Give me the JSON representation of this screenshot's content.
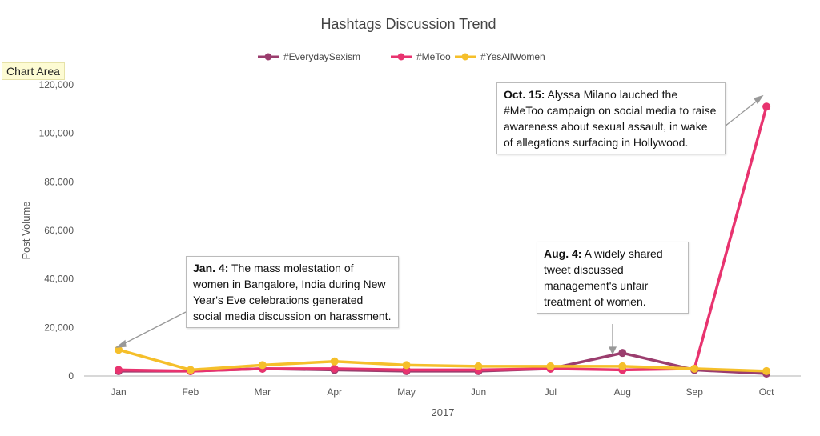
{
  "tooltip": "Chart Area",
  "chart_data": {
    "type": "line",
    "title": "Hashtags Discussion Trend",
    "xlabel": "2017",
    "ylabel": "Post Volume",
    "ylim": [
      0,
      120000
    ],
    "yticks": [
      0,
      20000,
      40000,
      60000,
      80000,
      100000,
      120000
    ],
    "ytick_labels": [
      "0",
      "20,000",
      "40,000",
      "60,000",
      "80,000",
      "100,000",
      "120,000"
    ],
    "categories": [
      "Jan",
      "Feb",
      "Mar",
      "Apr",
      "May",
      "Jun",
      "Jul",
      "Aug",
      "Sep",
      "Oct"
    ],
    "legend_position": "top",
    "series": [
      {
        "name": "#EverydaySexism",
        "color": "#9b3d6e",
        "values": [
          2000,
          2000,
          3000,
          2500,
          2000,
          2000,
          3000,
          9500,
          2500,
          1000
        ]
      },
      {
        "name": "#MeToo",
        "color": "#e8336f",
        "values": [
          2500,
          2000,
          3000,
          3000,
          2500,
          2500,
          3000,
          2500,
          3000,
          111000
        ]
      },
      {
        "name": "#YesAllWomen",
        "color": "#f5bf2a",
        "values": [
          10800,
          2500,
          4500,
          6000,
          4500,
          4000,
          4000,
          4000,
          3000,
          2000
        ]
      }
    ],
    "annotations": [
      {
        "bold": "Jan. 4:",
        "text": " The mass molestation of women in Bangalore, India during New Year's Eve celebrations generated social media discussion on harassment."
      },
      {
        "bold": "Aug. 4:",
        "text": " A widely shared tweet discussed management's unfair treatment of women."
      },
      {
        "bold": "Oct. 15:",
        "text": " Alyssa Milano lauched the #MeToo campaign on social media to raise awareness about sexual assault, in wake of allegations surfacing in Hollywood."
      }
    ]
  }
}
